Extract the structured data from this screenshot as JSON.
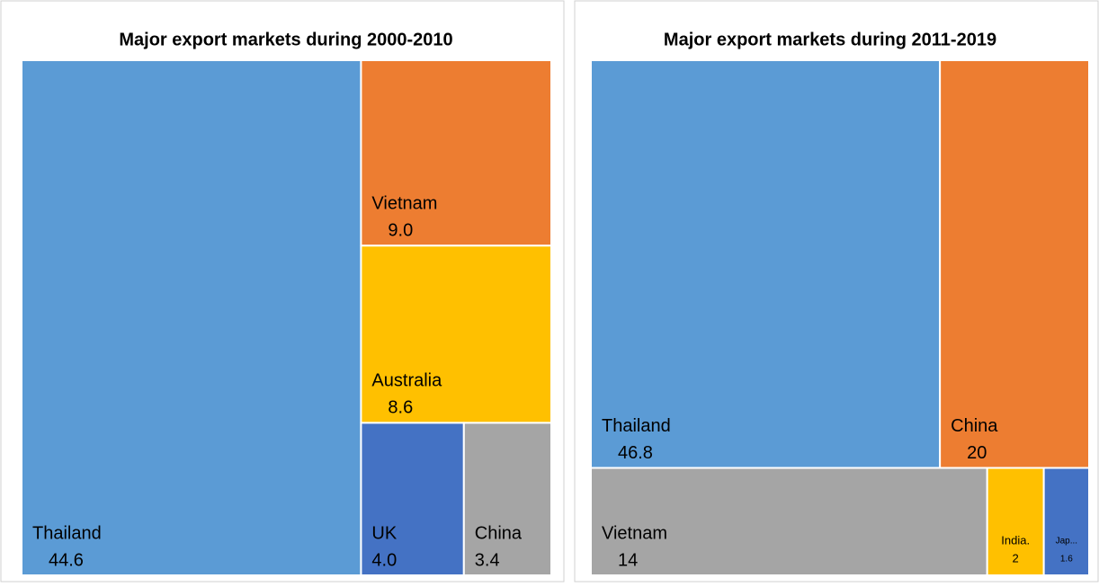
{
  "chart_data": [
    {
      "type": "treemap",
      "title": "Major export markets during 2000-2010",
      "categories": [
        "Thailand",
        "Vietnam",
        "Australia",
        "UK",
        "China"
      ],
      "values": [
        44.6,
        9.0,
        8.6,
        4.0,
        3.4
      ],
      "value_labels": [
        "44.6",
        "9.0",
        "8.6",
        "4.0",
        "3.4"
      ],
      "colors": [
        "#5b9bd5",
        "#ed7d31",
        "#ffc000",
        "#4472c4",
        "#a5a5a5"
      ]
    },
    {
      "type": "treemap",
      "title": "Major export markets during 2011-2019",
      "categories": [
        "Thailand",
        "China",
        "Vietnam",
        "India.",
        "Jap..."
      ],
      "values": [
        46.8,
        20,
        14,
        2,
        1.6
      ],
      "colors": [
        "#5b9bd5",
        "#ed7d31",
        "#a5a5a5",
        "#ffc000",
        "#4472c4"
      ]
    }
  ]
}
